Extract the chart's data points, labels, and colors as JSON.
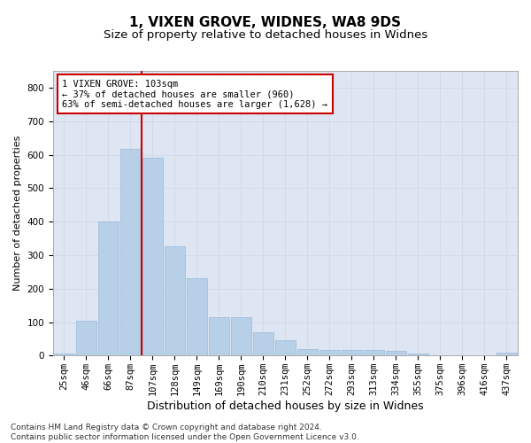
{
  "title1": "1, VIXEN GROVE, WIDNES, WA8 9DS",
  "title2": "Size of property relative to detached houses in Widnes",
  "xlabel": "Distribution of detached houses by size in Widnes",
  "ylabel": "Number of detached properties",
  "categories": [
    "25sqm",
    "46sqm",
    "66sqm",
    "87sqm",
    "107sqm",
    "128sqm",
    "149sqm",
    "169sqm",
    "190sqm",
    "210sqm",
    "231sqm",
    "252sqm",
    "272sqm",
    "293sqm",
    "313sqm",
    "334sqm",
    "355sqm",
    "375sqm",
    "396sqm",
    "416sqm",
    "437sqm"
  ],
  "values": [
    5,
    103,
    400,
    617,
    590,
    325,
    230,
    115,
    115,
    70,
    45,
    20,
    18,
    18,
    16,
    14,
    5,
    2,
    2,
    2,
    8
  ],
  "bar_color": "#b8cfe8",
  "bar_edgecolor": "#9ab8d8",
  "grid_color": "#d0d8e8",
  "bg_color": "#dde6f2",
  "vline_x": 3.5,
  "vline_color": "#cc0000",
  "annotation_text": "1 VIXEN GROVE: 103sqm\n← 37% of detached houses are smaller (960)\n63% of semi-detached houses are larger (1,628) →",
  "annotation_box_color": "#cc0000",
  "ylim": [
    0,
    850
  ],
  "yticks": [
    0,
    100,
    200,
    300,
    400,
    500,
    600,
    700,
    800
  ],
  "footnote": "Contains HM Land Registry data © Crown copyright and database right 2024.\nContains public sector information licensed under the Open Government Licence v3.0.",
  "title1_fontsize": 11,
  "title2_fontsize": 9.5,
  "xlabel_fontsize": 9,
  "ylabel_fontsize": 8,
  "tick_fontsize": 7.5,
  "annotation_fontsize": 7.5,
  "footnote_fontsize": 6.5
}
